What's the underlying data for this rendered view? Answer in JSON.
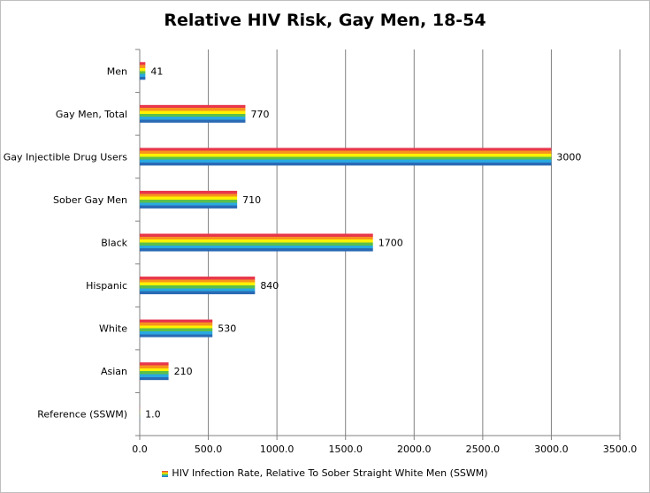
{
  "chart_data": {
    "type": "bar",
    "orientation": "horizontal",
    "title": "Relative HIV Risk, Gay Men, 18-54",
    "xlabel": "",
    "ylabel": "",
    "xlim": [
      0,
      3500
    ],
    "x_ticks": [
      "0.0",
      "500.0",
      "1000.0",
      "1500.0",
      "2000.0",
      "2500.0",
      "3000.0",
      "3500.0"
    ],
    "grid": "vertical",
    "legend_position": "bottom",
    "categories": [
      "Men",
      "Gay Men, Total",
      "Gay Injectible Drug Users",
      "Sober Gay Men",
      "Black",
      "Hispanic",
      "White",
      "Asian",
      "Reference (SSWM)"
    ],
    "series": [
      {
        "name": "HIV Infection Rate, Relative To Sober Straight White Men (SSWM)",
        "values": [
          41,
          770,
          3000,
          710,
          1700,
          840,
          530,
          210,
          1.0
        ],
        "labels": [
          "41",
          "770",
          "3000",
          "710",
          "1700",
          "840",
          "530",
          "210",
          "1.0"
        ]
      }
    ],
    "bar_stripe_colors": [
      "#e8374b",
      "#f7941d",
      "#fff200",
      "#5bbf4a",
      "#29a9e0",
      "#2a6ab5"
    ]
  }
}
